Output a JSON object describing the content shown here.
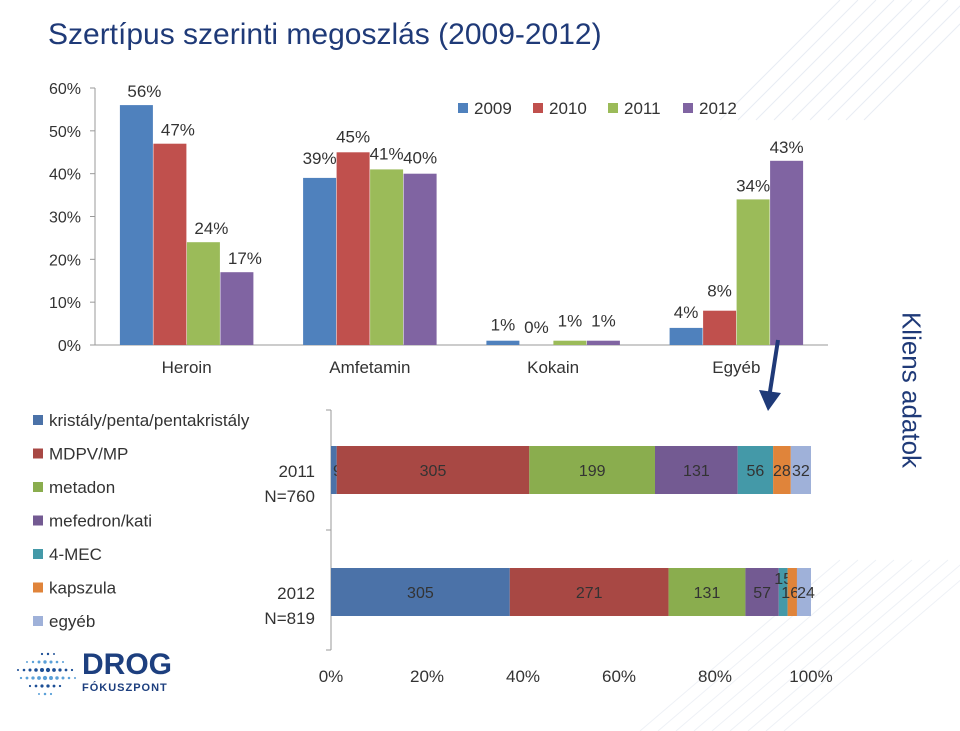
{
  "title": "Szertípus szerinti megoszlás (2009-2012)",
  "side_label": "Kliens adatok",
  "logo": {
    "main": "DROG",
    "sub": "FÓKUSZPONT"
  },
  "colors": {
    "title": "#1f3a78",
    "y2009": "#4f81bd",
    "y2010": "#c0504d",
    "y2011": "#9bbb59",
    "y2012": "#8064a2",
    "s1": "#4b72a8",
    "s2": "#a84844",
    "s3": "#8aad4e",
    "s4": "#735a92",
    "s5": "#4499a8",
    "s6": "#e0843a",
    "s7": "#9fb1d9"
  },
  "chart_data": [
    {
      "type": "bar",
      "categories": [
        "Heroin",
        "Amfetamin",
        "Kokain",
        "Egyéb"
      ],
      "ylim": [
        0,
        60
      ],
      "yticks": [
        "0%",
        "10%",
        "20%",
        "30%",
        "40%",
        "50%",
        "60%"
      ],
      "legend_position": "top-right",
      "series": [
        {
          "name": "2009",
          "values": [
            56,
            39,
            1,
            4
          ],
          "labels": [
            "56%",
            "39%",
            "1%",
            "4%"
          ]
        },
        {
          "name": "2010",
          "values": [
            47,
            45,
            0,
            8
          ],
          "labels": [
            "47%",
            "45%",
            "0%",
            "8%"
          ]
        },
        {
          "name": "2011",
          "values": [
            24,
            41,
            1,
            34
          ],
          "labels": [
            "24%",
            "41%",
            "1%",
            "34%"
          ]
        },
        {
          "name": "2012",
          "values": [
            17,
            40,
            1,
            43
          ],
          "labels": [
            "17%",
            "40%",
            "1%",
            "43%"
          ]
        }
      ]
    },
    {
      "type": "bar",
      "orientation": "horizontal",
      "stacked": "percent",
      "categories": [
        "2011",
        "2012"
      ],
      "category_sublabels": [
        "N=760",
        "N=819"
      ],
      "xticks": [
        "0%",
        "20%",
        "40%",
        "60%",
        "80%",
        "100%"
      ],
      "legend_position": "left",
      "series": [
        {
          "name": "kristály/penta/pentakristály",
          "values": [
            9,
            305
          ]
        },
        {
          "name": "MDPV/MP",
          "values": [
            305,
            271
          ]
        },
        {
          "name": "metadon",
          "values": [
            199,
            131
          ]
        },
        {
          "name": "mefedron/kati",
          "values": [
            131,
            57
          ]
        },
        {
          "name": "4-MEC",
          "values": [
            56,
            15
          ]
        },
        {
          "name": "kapszula",
          "values": [
            28,
            16
          ]
        },
        {
          "name": "egyéb",
          "values": [
            32,
            24
          ]
        }
      ]
    }
  ]
}
